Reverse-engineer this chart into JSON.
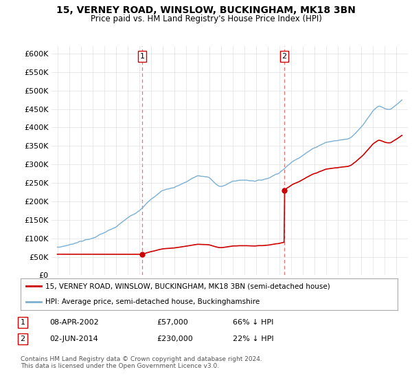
{
  "title": "15, VERNEY ROAD, WINSLOW, BUCKINGHAM, MK18 3BN",
  "subtitle": "Price paid vs. HM Land Registry's House Price Index (HPI)",
  "ylim": [
    0,
    620000
  ],
  "yticks": [
    0,
    50000,
    100000,
    150000,
    200000,
    250000,
    300000,
    350000,
    400000,
    450000,
    500000,
    550000,
    600000
  ],
  "ytick_labels": [
    "£0",
    "£50K",
    "£100K",
    "£150K",
    "£200K",
    "£250K",
    "£300K",
    "£350K",
    "£400K",
    "£450K",
    "£500K",
    "£550K",
    "£600K"
  ],
  "sale1_date": 2002.27,
  "sale1_price": 57000,
  "sale1_label": "1",
  "sale2_date": 2014.42,
  "sale2_price": 230000,
  "sale2_label": "2",
  "hpi_color": "#7bafd4",
  "sale_color": "#cc0000",
  "dashed_color": "#e87070",
  "background_color": "#ffffff",
  "grid_color": "#e0e0e0",
  "legend_sale_label": "15, VERNEY ROAD, WINSLOW, BUCKINGHAM, MK18 3BN (semi-detached house)",
  "legend_hpi_label": "HPI: Average price, semi-detached house, Buckinghamshire",
  "footer": "Contains HM Land Registry data © Crown copyright and database right 2024.\nThis data is licensed under the Open Government Licence v3.0.",
  "xmin": 1994.5,
  "xmax": 2025.0
}
